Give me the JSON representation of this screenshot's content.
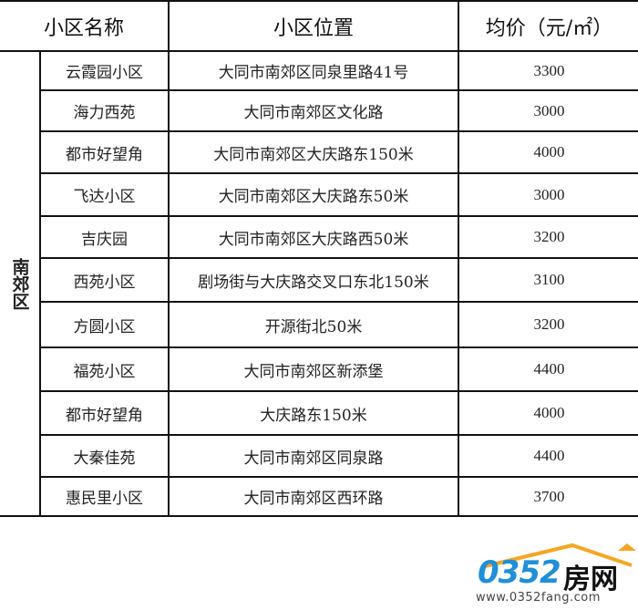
{
  "headers": {
    "name": "小区名称",
    "location": "小区位置",
    "price": "均价（元/㎡）"
  },
  "district": "南郊区",
  "rows": [
    {
      "name": "云霞园小区",
      "location": "大同市南郊区同泉里路41号",
      "price": "3300"
    },
    {
      "name": "海力西苑",
      "location": "大同市南郊区文化路",
      "price": "3000"
    },
    {
      "name": "都市好望角",
      "location": "大同市南郊区大庆路东150米",
      "price": "4000"
    },
    {
      "name": "飞达小区",
      "location": "大同市南郊区大庆路东50米",
      "price": "3000"
    },
    {
      "name": "吉庆园",
      "location": "大同市南郊区大庆路西50米",
      "price": "3200"
    },
    {
      "name": "西苑小区",
      "location": "剧场街与大庆路交叉口东北150米",
      "price": "3100"
    },
    {
      "name": "方圆小区",
      "location": "开源街北50米",
      "price": "3200"
    },
    {
      "name": "福苑小区",
      "location": "大同市南郊区新添堡",
      "price": "4400"
    },
    {
      "name": "都市好望角",
      "location": "大庆路东150米",
      "price": "4000"
    },
    {
      "name": "大秦佳苑",
      "location": "大同市南郊区同泉路",
      "price": "4400"
    },
    {
      "name": "惠民里小区",
      "location": "大同市南郊区西环路",
      "price": "3700"
    }
  ],
  "watermark": {
    "brand_number": "0352",
    "brand_text": "房网",
    "url": "www.0352fang.com",
    "colors": {
      "blue": "#1f8fd8",
      "orange": "#f5a623"
    }
  }
}
